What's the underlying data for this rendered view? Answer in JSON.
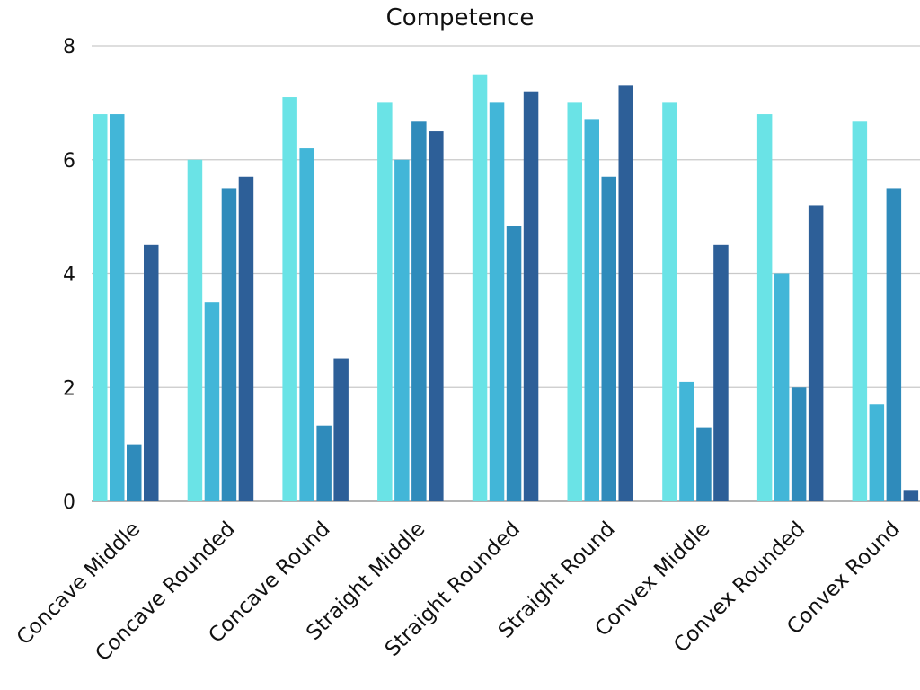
{
  "chart_data": {
    "type": "bar",
    "title": "Competence",
    "xlabel": "",
    "ylabel": "",
    "ylim": [
      0,
      8
    ],
    "yticks": [
      0,
      2,
      4,
      6,
      8
    ],
    "grid": true,
    "categories": [
      "Concave Middle",
      "Concave Rounded",
      "Concave Round",
      "Straight Middle",
      "Straight Rounded",
      "Straight Round",
      "Convex Middle",
      "Convex Rounded",
      "Convex Round"
    ],
    "series": [
      {
        "color": "#6ae3e6",
        "values": [
          6.8,
          6.0,
          7.1,
          7.0,
          7.5,
          7.0,
          7.0,
          6.8,
          6.67
        ]
      },
      {
        "color": "#42b6d8",
        "values": [
          6.8,
          3.5,
          6.2,
          6.0,
          7.0,
          6.7,
          2.1,
          4.0,
          1.7
        ]
      },
      {
        "color": "#2f8bbb",
        "values": [
          1.0,
          5.5,
          1.33,
          6.67,
          4.83,
          5.7,
          1.3,
          2.0,
          5.5
        ]
      },
      {
        "color": "#2d5f98",
        "values": [
          4.5,
          5.7,
          2.5,
          6.5,
          7.2,
          7.3,
          4.5,
          5.2,
          0.2
        ]
      }
    ]
  }
}
